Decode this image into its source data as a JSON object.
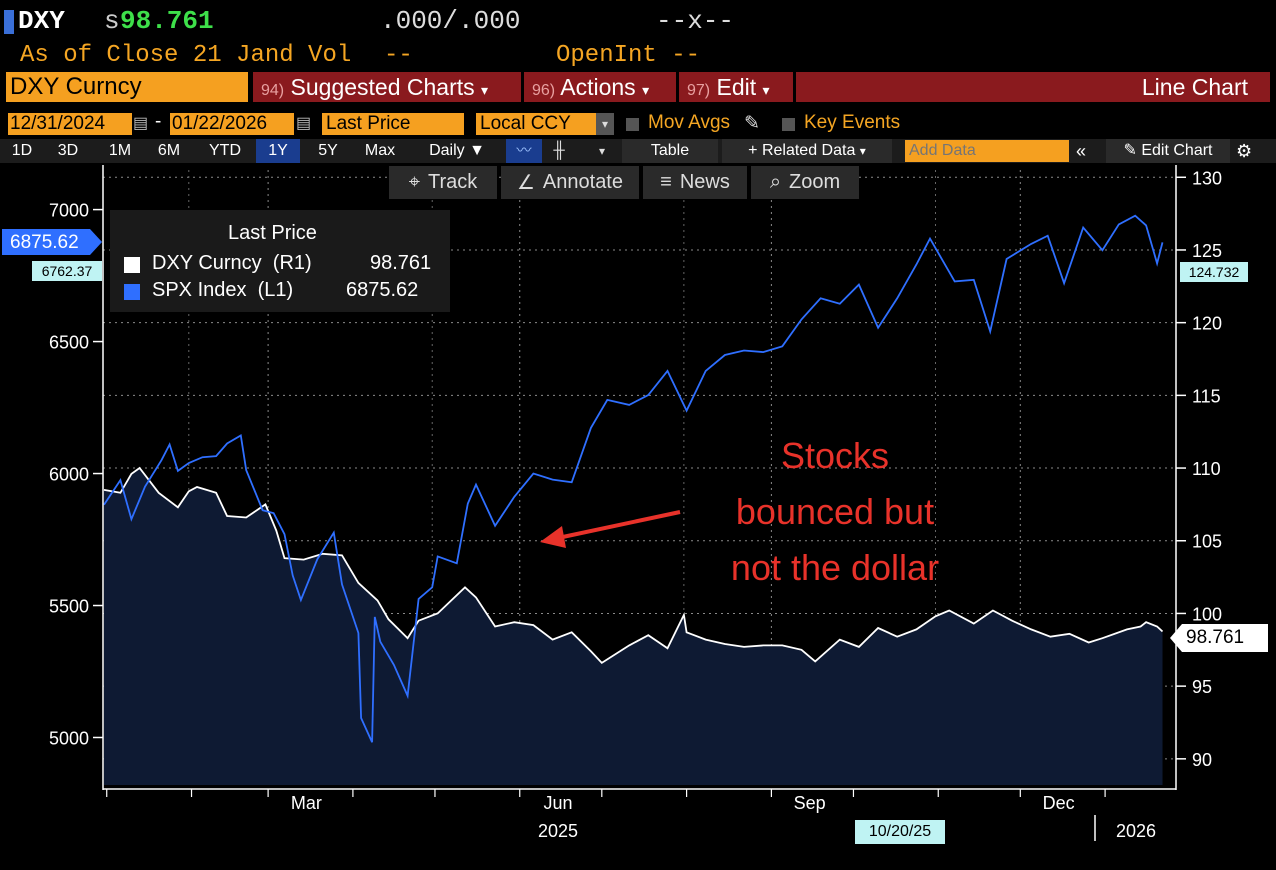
{
  "header": {
    "ticker": "DXY",
    "price_prefix": "s",
    "price": "98.761",
    "bid_ask": ".000/.000",
    "change": "--x--",
    "as_of": "As of Close 21 Jand Vol",
    "vol": "--",
    "open_int": "OpenInt --"
  },
  "menu": {
    "security": "DXY Curncy",
    "suggested_num": "94)",
    "suggested": "Suggested Charts",
    "actions_num": "96)",
    "actions": "Actions",
    "edit_num": "97)",
    "edit": "Edit",
    "chart_type": "Line Chart"
  },
  "controls": {
    "start_date": "12/31/2024",
    "end_date": "01/22/2026",
    "dash": "-",
    "field": "Last Price",
    "currency": "Local CCY",
    "mov_avgs": "Mov Avgs",
    "key_events": "Key Events"
  },
  "periods": [
    "1D",
    "3D",
    "1M",
    "6M",
    "YTD",
    "1Y",
    "5Y",
    "Max"
  ],
  "active_period": "1Y",
  "toolbar": {
    "daily": "Daily",
    "table": "Table",
    "related": "+ Related Data",
    "add_data_placeholder": "Add Data",
    "edit_chart": "Edit Chart"
  },
  "chart_tools": {
    "track": "Track",
    "annotate": "Annotate",
    "news": "News",
    "zoom": "Zoom"
  },
  "legend": {
    "header": "Last Price",
    "items": [
      {
        "name": "DXY Curncy  (R1)",
        "value": "98.761",
        "color": "#ffffff"
      },
      {
        "name": "SPX Index  (L1)",
        "value": "6875.62",
        "color": "#2f6fff"
      }
    ]
  },
  "annotation": {
    "lines": [
      "Stocks",
      "bounced but",
      "not the dollar"
    ],
    "color": "#e8322a"
  },
  "tags": {
    "spx_last": "6875.62",
    "spx_prev": "6762.37",
    "dxy_prev": "124.732",
    "dxy_last": "98.761",
    "crosshair_date": "10/20/25"
  },
  "chart_data": {
    "type": "line",
    "x_labels": [
      "Mar",
      "Jun",
      "Sep",
      "Dec"
    ],
    "year_labels": [
      "2025",
      "2026"
    ],
    "left_axis": {
      "ticks": [
        5000,
        5500,
        6000,
        6500,
        7000
      ],
      "ylim": [
        4820,
        7150
      ]
    },
    "right_axis": {
      "ticks": [
        90,
        95,
        100,
        105,
        110,
        115,
        120,
        125,
        130
      ],
      "ylim": [
        88.2,
        130.5
      ]
    },
    "series": [
      {
        "name": "SPX Index",
        "axis": "left",
        "color": "#2f6fff",
        "points": [
          [
            "2024-12-31",
            5882
          ],
          [
            "2025-01-06",
            5975
          ],
          [
            "2025-01-10",
            5827
          ],
          [
            "2025-01-15",
            5950
          ],
          [
            "2025-01-21",
            6050
          ],
          [
            "2025-01-24",
            6110
          ],
          [
            "2025-01-27",
            6010
          ],
          [
            "2025-01-31",
            6040
          ],
          [
            "2025-02-05",
            6062
          ],
          [
            "2025-02-10",
            6066
          ],
          [
            "2025-02-14",
            6114
          ],
          [
            "2025-02-19",
            6144
          ],
          [
            "2025-02-21",
            6013
          ],
          [
            "2025-02-27",
            5861
          ],
          [
            "2025-03-03",
            5850
          ],
          [
            "2025-03-07",
            5770
          ],
          [
            "2025-03-10",
            5614
          ],
          [
            "2025-03-13",
            5521
          ],
          [
            "2025-03-19",
            5675
          ],
          [
            "2025-03-25",
            5776
          ],
          [
            "2025-03-28",
            5580
          ],
          [
            "2025-04-03",
            5396
          ],
          [
            "2025-04-04",
            5074
          ],
          [
            "2025-04-08",
            4982
          ],
          [
            "2025-04-09",
            5457
          ],
          [
            "2025-04-11",
            5363
          ],
          [
            "2025-04-16",
            5275
          ],
          [
            "2025-04-21",
            5158
          ],
          [
            "2025-04-25",
            5525
          ],
          [
            "2025-04-30",
            5569
          ],
          [
            "2025-05-02",
            5686
          ],
          [
            "2025-05-09",
            5660
          ],
          [
            "2025-05-13",
            5886
          ],
          [
            "2025-05-16",
            5958
          ],
          [
            "2025-05-23",
            5802
          ],
          [
            "2025-05-30",
            5912
          ],
          [
            "2025-06-06",
            6000
          ],
          [
            "2025-06-13",
            5977
          ],
          [
            "2025-06-20",
            5967
          ],
          [
            "2025-06-27",
            6173
          ],
          [
            "2025-07-03",
            6279
          ],
          [
            "2025-07-11",
            6260
          ],
          [
            "2025-07-18",
            6297
          ],
          [
            "2025-07-25",
            6389
          ],
          [
            "2025-08-01",
            6238
          ],
          [
            "2025-08-08",
            6389
          ],
          [
            "2025-08-15",
            6449
          ],
          [
            "2025-08-22",
            6466
          ],
          [
            "2025-08-29",
            6460
          ],
          [
            "2025-09-05",
            6482
          ],
          [
            "2025-09-12",
            6584
          ],
          [
            "2025-09-19",
            6664
          ],
          [
            "2025-09-26",
            6643
          ],
          [
            "2025-10-03",
            6716
          ],
          [
            "2025-10-10",
            6552
          ],
          [
            "2025-10-17",
            6664
          ],
          [
            "2025-10-24",
            6792
          ],
          [
            "2025-10-29",
            6890
          ],
          [
            "2025-11-07",
            6728
          ],
          [
            "2025-11-14",
            6734
          ],
          [
            "2025-11-20",
            6538
          ],
          [
            "2025-11-26",
            6813
          ],
          [
            "2025-12-05",
            6870
          ],
          [
            "2025-12-11",
            6901
          ],
          [
            "2025-12-17",
            6721
          ],
          [
            "2025-12-24",
            6932
          ],
          [
            "2025-12-31",
            6846
          ],
          [
            "2026-01-06",
            6944
          ],
          [
            "2026-01-12",
            6977
          ],
          [
            "2026-01-16",
            6940
          ],
          [
            "2026-01-20",
            6796
          ],
          [
            "2026-01-22",
            6875.62
          ]
        ]
      },
      {
        "name": "DXY Curncy",
        "axis": "right",
        "color": "#ffffff",
        "points": [
          [
            "2024-12-31",
            108.5
          ],
          [
            "2025-01-06",
            108.3
          ],
          [
            "2025-01-10",
            109.6
          ],
          [
            "2025-01-13",
            110.0
          ],
          [
            "2025-01-20",
            108.3
          ],
          [
            "2025-01-27",
            107.3
          ],
          [
            "2025-01-31",
            108.4
          ],
          [
            "2025-02-03",
            108.7
          ],
          [
            "2025-02-10",
            108.3
          ],
          [
            "2025-02-14",
            106.7
          ],
          [
            "2025-02-21",
            106.6
          ],
          [
            "2025-02-28",
            107.5
          ],
          [
            "2025-03-04",
            105.7
          ],
          [
            "2025-03-07",
            103.8
          ],
          [
            "2025-03-14",
            103.7
          ],
          [
            "2025-03-21",
            104.1
          ],
          [
            "2025-03-28",
            104.0
          ],
          [
            "2025-04-03",
            102.1
          ],
          [
            "2025-04-10",
            100.9
          ],
          [
            "2025-04-14",
            99.6
          ],
          [
            "2025-04-21",
            98.3
          ],
          [
            "2025-04-25",
            99.5
          ],
          [
            "2025-05-02",
            100.0
          ],
          [
            "2025-05-12",
            101.8
          ],
          [
            "2025-05-16",
            101.1
          ],
          [
            "2025-05-23",
            99.1
          ],
          [
            "2025-05-30",
            99.4
          ],
          [
            "2025-06-06",
            99.2
          ],
          [
            "2025-06-13",
            98.2
          ],
          [
            "2025-06-20",
            98.7
          ],
          [
            "2025-06-27",
            97.4
          ],
          [
            "2025-07-01",
            96.6
          ],
          [
            "2025-07-11",
            97.8
          ],
          [
            "2025-07-18",
            98.5
          ],
          [
            "2025-07-25",
            97.6
          ],
          [
            "2025-07-31",
            99.9
          ],
          [
            "2025-08-01",
            98.7
          ],
          [
            "2025-08-08",
            98.2
          ],
          [
            "2025-08-15",
            97.9
          ],
          [
            "2025-08-22",
            97.7
          ],
          [
            "2025-08-29",
            97.8
          ],
          [
            "2025-09-05",
            97.8
          ],
          [
            "2025-09-12",
            97.5
          ],
          [
            "2025-09-17",
            96.7
          ],
          [
            "2025-09-26",
            98.2
          ],
          [
            "2025-10-03",
            97.7
          ],
          [
            "2025-10-10",
            99.0
          ],
          [
            "2025-10-17",
            98.4
          ],
          [
            "2025-10-24",
            98.9
          ],
          [
            "2025-10-31",
            99.8
          ],
          [
            "2025-11-05",
            100.2
          ],
          [
            "2025-11-14",
            99.3
          ],
          [
            "2025-11-21",
            100.2
          ],
          [
            "2025-11-28",
            99.5
          ],
          [
            "2025-12-05",
            98.9
          ],
          [
            "2025-12-12",
            98.4
          ],
          [
            "2025-12-19",
            98.6
          ],
          [
            "2025-12-26",
            98.0
          ],
          [
            "2025-12-31",
            98.3
          ],
          [
            "2026-01-09",
            98.9
          ],
          [
            "2026-01-14",
            99.1
          ],
          [
            "2026-01-16",
            99.4
          ],
          [
            "2026-01-20",
            99.1
          ],
          [
            "2026-01-22",
            98.761
          ]
        ]
      }
    ]
  }
}
